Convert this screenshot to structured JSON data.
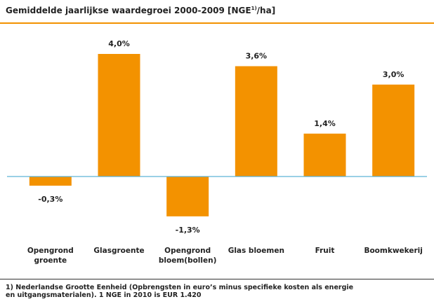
{
  "chart_data": {
    "type": "bar",
    "title": {
      "text": "Gemiddelde jaarlijkse waardegroei 2000-2009 [NGE",
      "superscript": "1)",
      "suffix": "/ha]"
    },
    "categories": [
      "Opengrond groente",
      "Glasgroente",
      "Opengrond bloem(bollen)",
      "Glas bloemen",
      "Fruit",
      "Boomkwekerij"
    ],
    "values": [
      -0.3,
      4.0,
      -1.3,
      3.6,
      1.4,
      3.0
    ],
    "value_labels": [
      "-0,3%",
      "4,0%",
      "-1,3%",
      "3,6%",
      "1,4%",
      "3,0%"
    ],
    "color": "#f39200",
    "footnote": [
      "1) Nederlandse Grootte Eenheid (Opbrengsten in euro’s minus specifieke kosten als energie",
      "en uitgangsmaterialen). 1 NGE in 2010 is EUR 1.420"
    ]
  }
}
